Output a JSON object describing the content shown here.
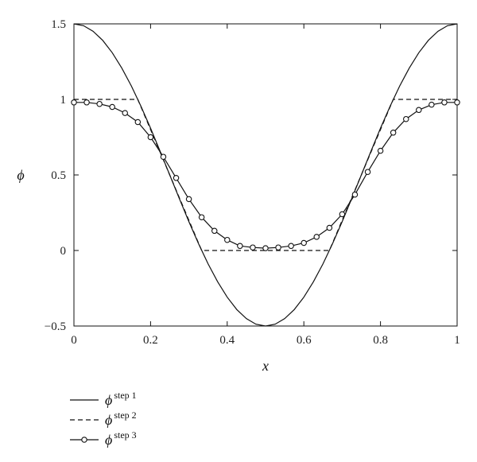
{
  "chart_data": {
    "type": "line",
    "title": "",
    "xlabel": "x",
    "ylabel": "ϕ",
    "xlim": [
      0,
      1
    ],
    "ylim": [
      -0.5,
      1.5
    ],
    "xticks": [
      "0",
      "0.2",
      "0.4",
      "0.6",
      "0.8",
      "1"
    ],
    "xtick_values": [
      0,
      0.2,
      0.4,
      0.6,
      0.8,
      1
    ],
    "yticks": [
      "−0.5",
      "0",
      "0.5",
      "1",
      "1.5"
    ],
    "ytick_values": [
      -0.5,
      0,
      0.5,
      1,
      1.5
    ],
    "grid": false,
    "legend_position": "bottom-left",
    "series": [
      {
        "name": "ϕ",
        "name_sup": "step 1",
        "style": "solid",
        "x": [
          0,
          0.025,
          0.05,
          0.075,
          0.1,
          0.125,
          0.15,
          0.175,
          0.2,
          0.225,
          0.25,
          0.275,
          0.3,
          0.325,
          0.35,
          0.375,
          0.4,
          0.425,
          0.45,
          0.475,
          0.5,
          0.525,
          0.55,
          0.575,
          0.6,
          0.625,
          0.65,
          0.675,
          0.7,
          0.725,
          0.75,
          0.775,
          0.8,
          0.825,
          0.85,
          0.875,
          0.9,
          0.925,
          0.95,
          0.975,
          1
        ],
        "y": [
          1.5,
          1.488,
          1.451,
          1.391,
          1.309,
          1.207,
          1.088,
          0.954,
          0.809,
          0.656,
          0.5,
          0.344,
          0.191,
          0.046,
          -0.088,
          -0.207,
          -0.309,
          -0.391,
          -0.451,
          -0.488,
          -0.5,
          -0.488,
          -0.451,
          -0.391,
          -0.309,
          -0.207,
          -0.088,
          0.046,
          0.191,
          0.344,
          0.5,
          0.656,
          0.809,
          0.954,
          1.088,
          1.207,
          1.309,
          1.391,
          1.451,
          1.488,
          1.5
        ]
      },
      {
        "name": "ϕ",
        "name_sup": "step 2",
        "style": "dashed",
        "x": [
          0,
          0.1667,
          0.3333,
          0.6667,
          0.8333,
          1
        ],
        "y": [
          1,
          1,
          0,
          0,
          1,
          1
        ]
      },
      {
        "name": "ϕ",
        "name_sup": "step 3",
        "style": "solid-circle-markers",
        "x": [
          0,
          0.0333,
          0.0667,
          0.1,
          0.1333,
          0.1667,
          0.2,
          0.2333,
          0.2667,
          0.3,
          0.3333,
          0.3667,
          0.4,
          0.4333,
          0.4667,
          0.5,
          0.5333,
          0.5667,
          0.6,
          0.6333,
          0.6667,
          0.7,
          0.7333,
          0.7667,
          0.8,
          0.8333,
          0.8667,
          0.9,
          0.9333,
          0.9667,
          1
        ],
        "y": [
          0.98,
          0.98,
          0.97,
          0.95,
          0.91,
          0.85,
          0.75,
          0.62,
          0.48,
          0.34,
          0.22,
          0.13,
          0.07,
          0.03,
          0.02,
          0.015,
          0.02,
          0.03,
          0.05,
          0.09,
          0.15,
          0.24,
          0.37,
          0.52,
          0.66,
          0.78,
          0.87,
          0.93,
          0.965,
          0.98,
          0.98
        ]
      }
    ]
  }
}
